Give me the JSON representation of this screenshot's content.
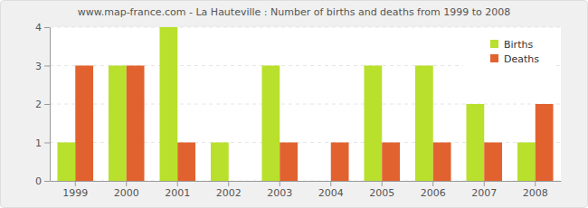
{
  "chart_data": {
    "type": "bar",
    "title": "www.map-france.com - La Hauteville : Number of births and deaths from 1999 to 2008",
    "categories": [
      "1999",
      "2000",
      "2001",
      "2002",
      "2003",
      "2004",
      "2005",
      "2006",
      "2007",
      "2008"
    ],
    "series": [
      {
        "name": "Births",
        "color": "#b8e02c",
        "values": [
          1,
          3,
          4,
          1,
          3,
          0,
          3,
          3,
          2,
          1
        ]
      },
      {
        "name": "Deaths",
        "color": "#e2622f",
        "values": [
          3,
          3,
          1,
          0,
          1,
          1,
          1,
          1,
          1,
          2
        ]
      }
    ],
    "ylim": [
      0,
      4
    ],
    "yticks": [
      0,
      1,
      2,
      3,
      4
    ],
    "grid": true,
    "legend": "top-right"
  }
}
